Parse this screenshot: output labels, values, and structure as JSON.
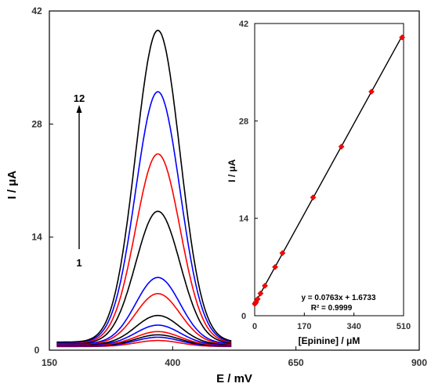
{
  "chart_data": [
    {
      "type": "line",
      "title": "",
      "xlabel": "E / mV",
      "ylabel": "I / μA",
      "xlim": [
        150,
        900
      ],
      "ylim": [
        0,
        42
      ],
      "xticks": [
        150,
        400,
        650,
        900
      ],
      "yticks": [
        0,
        14,
        28,
        42
      ],
      "grid": false,
      "peak_potential": 370,
      "peak_width": 45,
      "x_start": 165,
      "x_end": 520,
      "series": [
        {
          "peak": 1.2,
          "color": "#ff0000"
        },
        {
          "peak": 1.6,
          "color": "#0000ff"
        },
        {
          "peak": 1.9,
          "color": "#000000"
        },
        {
          "peak": 2.3,
          "color": "#ff0000"
        },
        {
          "peak": 3.1,
          "color": "#0000ff"
        },
        {
          "peak": 4.3,
          "color": "#000000"
        },
        {
          "peak": 7.0,
          "color": "#ff0000"
        },
        {
          "peak": 9.0,
          "color": "#0000ff"
        },
        {
          "peak": 17.2,
          "color": "#000000"
        },
        {
          "peak": 24.3,
          "color": "#ff0000"
        },
        {
          "peak": 32.0,
          "color": "#0000ff"
        },
        {
          "peak": 39.6,
          "color": "#000000"
        }
      ],
      "annotation": {
        "label_start": "1",
        "label_end": "12"
      }
    },
    {
      "type": "scatter",
      "title": "",
      "xlabel": "[Epinine] / μM",
      "ylabel": "I / μA",
      "xlim": [
        0,
        510
      ],
      "ylim": [
        0,
        42
      ],
      "xticks": [
        0,
        170,
        340,
        510
      ],
      "yticks": [
        0,
        14,
        28,
        42
      ],
      "grid": false,
      "points": [
        {
          "x": 0.5,
          "y": 1.7
        },
        {
          "x": 2,
          "y": 1.8
        },
        {
          "x": 5,
          "y": 2.0
        },
        {
          "x": 10,
          "y": 2.4
        },
        {
          "x": 20,
          "y": 3.2
        },
        {
          "x": 35,
          "y": 4.3
        },
        {
          "x": 70,
          "y": 7.0
        },
        {
          "x": 95,
          "y": 9.0
        },
        {
          "x": 200,
          "y": 17.0
        },
        {
          "x": 297,
          "y": 24.3
        },
        {
          "x": 400,
          "y": 32.2
        },
        {
          "x": 505,
          "y": 40.0
        }
      ],
      "marker_color": "#ff0000",
      "fit": {
        "slope": 0.0763,
        "intercept": 1.6733,
        "color": "#000000"
      },
      "equation": "y = 0.0763x + 1.6733",
      "r2": "R² = 0.9999"
    }
  ]
}
